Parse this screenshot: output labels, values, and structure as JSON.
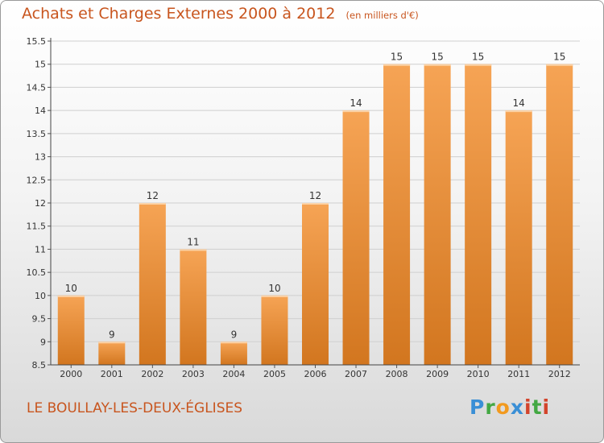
{
  "title": "Achats et Charges Externes 2000 à 2012",
  "unit": "(en milliers d'€)",
  "commune": "LE BOULLAY-LES-DEUX-ÉGLISES",
  "logo": {
    "letters": [
      {
        "ch": "P",
        "color": "#3a8fd6"
      },
      {
        "ch": "r",
        "color": "#43a843"
      },
      {
        "ch": "o",
        "color": "#f29a1f"
      },
      {
        "ch": "x",
        "color": "#3a8fd6"
      },
      {
        "ch": "i",
        "color": "#d3442b"
      },
      {
        "ch": "t",
        "color": "#43a843"
      },
      {
        "ch": "i",
        "color": "#d3442b"
      }
    ]
  },
  "colors": {
    "accent": "#c8551e",
    "bar_top": "#f6a455",
    "bar_bottom": "#d2761f",
    "grid": "#cfcfcf"
  },
  "chart_data": {
    "type": "bar",
    "categories": [
      "2000",
      "2001",
      "2002",
      "2003",
      "2004",
      "2005",
      "2006",
      "2007",
      "2008",
      "2009",
      "2010",
      "2011",
      "2012"
    ],
    "values": [
      10,
      9,
      12,
      11,
      9,
      10,
      12,
      14,
      15,
      15,
      15,
      14,
      15
    ],
    "data_labels": [
      "10",
      "9",
      "12",
      "11",
      "9",
      "10",
      "12",
      "14",
      "15",
      "15",
      "15",
      "14",
      "15"
    ],
    "ylim": [
      8.5,
      15.5
    ],
    "yticks": [
      8.5,
      9,
      9.5,
      10,
      10.5,
      11,
      11.5,
      12,
      12.5,
      13,
      13.5,
      14,
      14.5,
      15,
      15.5
    ],
    "ytick_labels": [
      "8.5",
      "9",
      "9.5",
      "10",
      "10.5",
      "11",
      "11.5",
      "12",
      "12.5",
      "13",
      "13.5",
      "14",
      "14.5",
      "15",
      "15.5"
    ],
    "grid": true,
    "xlabel": "",
    "ylabel": ""
  }
}
